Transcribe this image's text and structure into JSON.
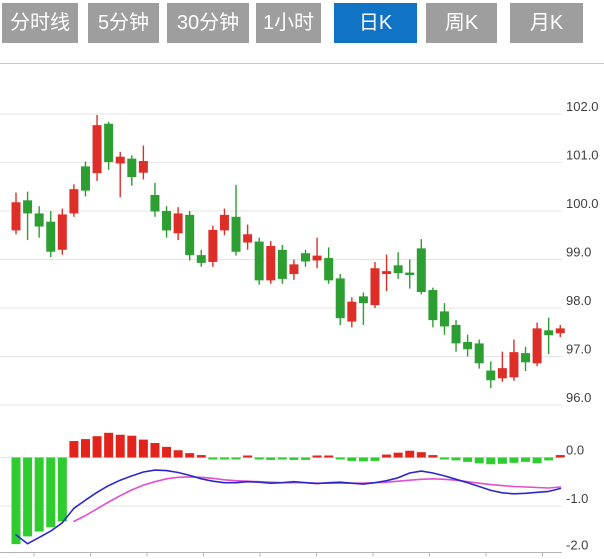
{
  "toolbar": {
    "tabs": [
      {
        "name": "timeshare",
        "label": "分时线",
        "active": false
      },
      {
        "name": "5min",
        "label": "5分钟",
        "active": false
      },
      {
        "name": "30min",
        "label": "30分钟",
        "active": false
      },
      {
        "name": "1hour",
        "label": "1小时",
        "active": false
      },
      {
        "name": "daily-k",
        "label": "日K",
        "active": true
      },
      {
        "name": "weekly-k",
        "label": "周K",
        "active": false
      },
      {
        "name": "monthly-k",
        "label": "月K",
        "active": false
      }
    ],
    "active_bg": "#1173c3",
    "inactive_bg": "#9e9e9e",
    "tab_text_color": "#ffffff"
  },
  "chart_data": {
    "type": "candlestick+macd",
    "title": "",
    "legend_position": "none",
    "grid": true,
    "price_axis": {
      "side": "right",
      "tick_values": [
        102.0,
        101.0,
        100.0,
        99.0,
        98.0,
        97.0,
        96.0
      ],
      "tick_labels": [
        "102.0",
        "101.0",
        "100.0",
        "99.0",
        "98.0",
        "97.0",
        "96.0"
      ],
      "range_shown": [
        95.8,
        103.0
      ]
    },
    "macd_axis": {
      "side": "right",
      "tick_values": [
        0.0,
        -1.0,
        -2.0
      ],
      "tick_labels": [
        "0.0",
        "-1.0",
        "-2.0"
      ],
      "range_shown": [
        0.55,
        -2.0
      ]
    },
    "candles_ohlc_note": "each candle is [open, close, low, high]; close>=open renders red (up), close<open renders green (down)",
    "candles": [
      [
        99.6,
        100.18,
        99.52,
        100.38
      ],
      [
        100.22,
        99.95,
        99.4,
        100.4
      ],
      [
        99.95,
        99.68,
        99.45,
        100.1
      ],
      [
        99.78,
        99.16,
        99.05,
        100.0
      ],
      [
        99.2,
        99.93,
        99.1,
        100.05
      ],
      [
        99.95,
        100.45,
        99.88,
        100.55
      ],
      [
        100.92,
        100.42,
        100.3,
        101.02
      ],
      [
        100.78,
        101.77,
        100.62,
        101.98
      ],
      [
        101.8,
        101.01,
        100.85,
        101.84
      ],
      [
        100.98,
        101.12,
        100.28,
        101.22
      ],
      [
        101.08,
        100.7,
        100.52,
        101.15
      ],
      [
        100.79,
        101.03,
        100.65,
        101.35
      ],
      [
        100.33,
        99.99,
        99.88,
        100.58
      ],
      [
        100.0,
        99.6,
        99.45,
        100.1
      ],
      [
        99.54,
        99.95,
        99.4,
        100.08
      ],
      [
        99.92,
        99.09,
        98.98,
        100.0
      ],
      [
        99.09,
        98.93,
        98.85,
        99.2
      ],
      [
        98.95,
        99.61,
        98.85,
        99.7
      ],
      [
        99.6,
        99.92,
        99.5,
        100.05
      ],
      [
        99.88,
        99.16,
        99.08,
        100.54
      ],
      [
        99.35,
        99.52,
        99.2,
        99.72
      ],
      [
        99.37,
        98.57,
        98.48,
        99.45
      ],
      [
        98.57,
        99.28,
        98.5,
        99.38
      ],
      [
        99.2,
        98.6,
        98.5,
        99.3
      ],
      [
        98.7,
        98.9,
        98.58,
        99.0
      ],
      [
        99.13,
        98.96,
        98.85,
        99.2
      ],
      [
        98.98,
        99.08,
        98.82,
        99.45
      ],
      [
        99.03,
        98.57,
        98.5,
        99.25
      ],
      [
        98.61,
        97.79,
        97.65,
        98.7
      ],
      [
        97.72,
        98.13,
        97.6,
        98.22
      ],
      [
        98.24,
        98.1,
        97.65,
        98.32
      ],
      [
        98.06,
        98.82,
        98.0,
        98.95
      ],
      [
        98.7,
        98.76,
        98.35,
        99.1
      ],
      [
        98.88,
        98.72,
        98.6,
        99.15
      ],
      [
        98.73,
        98.68,
        98.4,
        99.0
      ],
      [
        99.23,
        98.33,
        98.28,
        99.42
      ],
      [
        98.37,
        97.75,
        97.6,
        98.42
      ],
      [
        97.93,
        97.62,
        97.45,
        98.1
      ],
      [
        97.65,
        97.27,
        97.1,
        97.75
      ],
      [
        97.3,
        97.15,
        97.0,
        97.45
      ],
      [
        97.27,
        96.86,
        96.75,
        97.35
      ],
      [
        96.71,
        96.51,
        96.35,
        96.9
      ],
      [
        96.55,
        96.76,
        96.48,
        97.1
      ],
      [
        96.57,
        97.09,
        96.5,
        97.35
      ],
      [
        97.07,
        96.88,
        96.7,
        97.2
      ],
      [
        96.86,
        97.58,
        96.8,
        97.7
      ],
      [
        97.54,
        97.44,
        97.05,
        97.8
      ],
      [
        97.48,
        97.58,
        97.4,
        97.65
      ]
    ],
    "macd": {
      "histogram": [
        -1.79,
        -1.63,
        -1.53,
        -1.44,
        -1.32,
        0.34,
        0.38,
        0.44,
        0.51,
        0.47,
        0.45,
        0.37,
        0.3,
        0.22,
        0.15,
        0.09,
        0.05,
        -0.03,
        -0.04,
        -0.03,
        0.03,
        -0.04,
        -0.05,
        -0.04,
        -0.05,
        -0.05,
        0.04,
        0.03,
        -0.03,
        -0.07,
        -0.08,
        -0.07,
        0.06,
        0.1,
        0.14,
        0.11,
        0.05,
        -0.03,
        -0.06,
        -0.09,
        -0.12,
        -0.14,
        -0.13,
        -0.11,
        -0.09,
        -0.12,
        -0.06,
        0.05
      ],
      "dif_line": [
        -1.6,
        -1.78,
        -1.65,
        -1.52,
        -1.35,
        -1.05,
        -0.88,
        -0.72,
        -0.58,
        -0.47,
        -0.38,
        -0.3,
        -0.26,
        -0.27,
        -0.31,
        -0.37,
        -0.44,
        -0.49,
        -0.52,
        -0.52,
        -0.5,
        -0.51,
        -0.53,
        -0.52,
        -0.5,
        -0.52,
        -0.54,
        -0.52,
        -0.51,
        -0.53,
        -0.55,
        -0.52,
        -0.48,
        -0.42,
        -0.32,
        -0.28,
        -0.32,
        -0.38,
        -0.45,
        -0.52,
        -0.6,
        -0.68,
        -0.73,
        -0.75,
        -0.74,
        -0.72,
        -0.7,
        -0.64
      ],
      "dea_line": [
        null,
        null,
        null,
        null,
        null,
        -1.32,
        -1.2,
        -1.06,
        -0.92,
        -0.79,
        -0.67,
        -0.57,
        -0.5,
        -0.44,
        -0.41,
        -0.4,
        -0.41,
        -0.43,
        -0.46,
        -0.48,
        -0.49,
        -0.5,
        -0.51,
        -0.52,
        -0.52,
        -0.52,
        -0.53,
        -0.53,
        -0.53,
        -0.53,
        -0.53,
        -0.52,
        -0.51,
        -0.49,
        -0.47,
        -0.45,
        -0.44,
        -0.45,
        -0.47,
        -0.5,
        -0.53,
        -0.56,
        -0.58,
        -0.6,
        -0.61,
        -0.62,
        -0.63,
        -0.61
      ]
    },
    "colors": {
      "up_candle": "#dd2f28",
      "down_candle": "#2d9e32",
      "hist_up": "#e3241d",
      "hist_down": "#2ecc2e",
      "dif_line": "#2929c8",
      "dea_line": "#e14fd2",
      "grid_line": "#e4e4e4",
      "panel_border": "#c9c9c9",
      "x_axis": "#b5b5b5",
      "axis_label": "#3f3f3f"
    }
  }
}
